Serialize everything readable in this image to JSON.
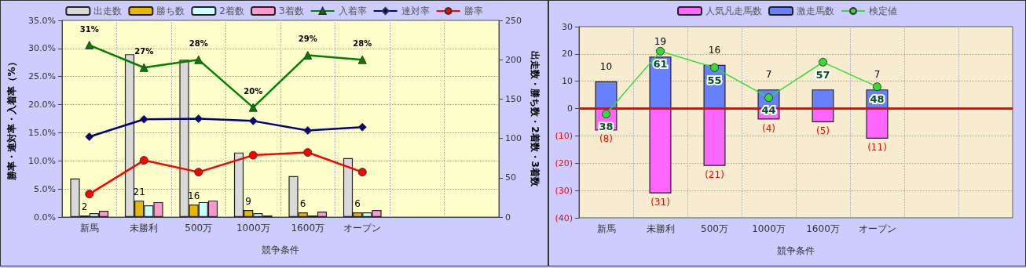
{
  "chart_data": [
    {
      "type": "bar",
      "xlabel": "競争条件",
      "ylabel": "勝率・連対率・入着率（%）",
      "y2label": "出走数・勝ち数・2着数・3着数",
      "categories": [
        "新馬",
        "未勝利",
        "500万",
        "1000万",
        "1600万",
        "オープン",
        null,
        null
      ],
      "ylim": [
        0,
        35
      ],
      "yticks": [
        {
          "value": 0,
          "label": "0.0%"
        },
        {
          "value": 5,
          "label": "5.0%"
        },
        {
          "value": 10,
          "label": "10.0%"
        },
        {
          "value": 15,
          "label": "15.0%"
        },
        {
          "value": 20,
          "label": "20.0%"
        },
        {
          "value": 25,
          "label": "25.0%"
        },
        {
          "value": 30,
          "label": "30.0%"
        },
        {
          "value": 35,
          "label": "35.0%"
        }
      ],
      "y2lim": [
        0,
        250
      ],
      "y2ticks": [
        0,
        50,
        100,
        150,
        200,
        250
      ],
      "grid": true,
      "legend": "top",
      "series": [
        {
          "name": "出走数",
          "axis": "y2",
          "color": "#d9d9d9",
          "values": [
            49,
            207,
            200,
            82,
            52,
            75,
            null,
            null
          ]
        },
        {
          "name": "勝ち数",
          "axis": "y2",
          "color": "#e6b800",
          "values": [
            2,
            21,
            16,
            9,
            6,
            6,
            null,
            null
          ],
          "value_labels": [
            "2",
            "21",
            "16",
            "9",
            "6",
            "6",
            null,
            null
          ]
        },
        {
          "name": "2着数",
          "axis": "y2",
          "color": "#ccffff",
          "values": [
            5,
            15,
            19,
            5,
            2,
            6,
            null,
            null
          ]
        },
        {
          "name": "3着数",
          "axis": "y2",
          "color": "#ff99cc",
          "values": [
            8,
            19,
            21,
            2,
            7,
            9,
            null,
            null
          ]
        },
        {
          "name": "入着率",
          "type": "line",
          "marker": "triangle",
          "color": "#008000",
          "values": [
            30.6,
            26.6,
            28.0,
            19.5,
            28.8,
            28.0,
            null,
            null
          ],
          "value_labels": [
            "31%",
            "27%",
            "28%",
            "20%",
            "29%",
            "28%",
            null,
            null
          ]
        },
        {
          "name": "連対率",
          "type": "line",
          "marker": "diamond",
          "color": "#000080",
          "values": [
            14.3,
            17.4,
            17.5,
            17.1,
            15.4,
            16.0,
            null,
            null
          ]
        },
        {
          "name": "勝率",
          "type": "line",
          "marker": "circle",
          "color": "#ff0000",
          "values": [
            4.1,
            10.1,
            8.0,
            11.0,
            11.5,
            8.0,
            null,
            null
          ]
        }
      ]
    },
    {
      "type": "bar",
      "xlabel": "競争条件",
      "stacked": true,
      "categories": [
        "新馬",
        "未勝利",
        "500万",
        "1000万",
        "1600万",
        "オープン",
        null,
        null
      ],
      "ylim": [
        -40,
        30
      ],
      "y2lim": [
        0,
        70
      ],
      "yticks": [
        {
          "value": -40,
          "label": "(40)"
        },
        {
          "value": -30,
          "label": "(30)"
        },
        {
          "value": -20,
          "label": "(20)"
        },
        {
          "value": -10,
          "label": "(10)"
        },
        0,
        10,
        20,
        30
      ],
      "grid": true,
      "legend": "top",
      "ref_lines": [
        {
          "axis": "y",
          "value": 0,
          "color": "#ff0000"
        }
      ],
      "series": [
        {
          "name": "人気凡走馬数",
          "color": "#ff66ff",
          "values": [
            -8,
            -31,
            -21,
            -4,
            -5,
            -11,
            null,
            null
          ],
          "value_labels": [
            "(8)",
            "(31)",
            "(21)",
            "(4)",
            "(5)",
            "(11)",
            null,
            null
          ]
        },
        {
          "name": "激走馬数",
          "color": "#6680ff",
          "values": [
            10,
            19,
            16,
            7,
            7,
            7,
            null,
            null
          ],
          "value_labels": [
            "10",
            "19",
            "16",
            "7",
            null,
            "7",
            null,
            null
          ]
        },
        {
          "name": "検定値",
          "type": "line",
          "axis": "y2",
          "marker": "circle",
          "color": "#33dd33",
          "values": [
            38,
            61,
            55,
            44,
            57,
            48,
            null,
            null
          ],
          "value_labels": [
            "38",
            "61",
            "55",
            "44",
            "57",
            "48",
            null,
            null
          ]
        }
      ]
    }
  ]
}
